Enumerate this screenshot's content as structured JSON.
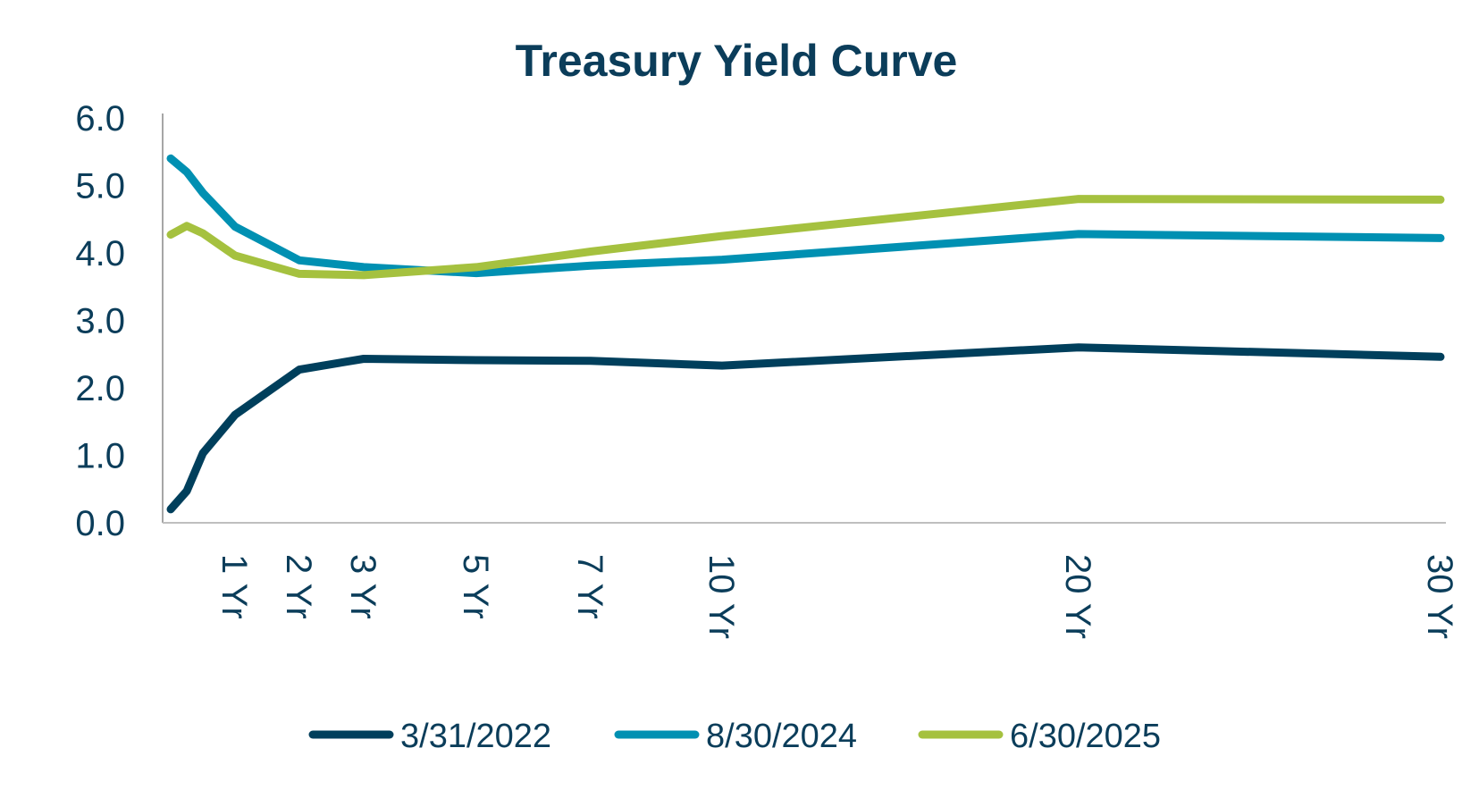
{
  "chart_data": {
    "type": "line",
    "title": "Treasury Yield Curve",
    "xlabel": "",
    "ylabel": "",
    "ylim": [
      0,
      6
    ],
    "yticks": [
      "0.0",
      "1.0",
      "2.0",
      "3.0",
      "4.0",
      "5.0",
      "6.0"
    ],
    "xticks": [
      {
        "x": 1,
        "label": "1 Yr"
      },
      {
        "x": 2,
        "label": "2 Yr"
      },
      {
        "x": 3,
        "label": "3 Yr"
      },
      {
        "x": 5,
        "label": "5 Yr"
      },
      {
        "x": 7,
        "label": "7 Yr"
      },
      {
        "x": 10,
        "label": "10 Yr"
      },
      {
        "x": 20,
        "label": "20 Yr"
      },
      {
        "x": 30,
        "label": "30 Yr"
      }
    ],
    "x": [
      0.083,
      0.25,
      0.5,
      1,
      2,
      3,
      5,
      7,
      10,
      20,
      30
    ],
    "grid": false,
    "legend_position": "bottom",
    "series": [
      {
        "name": "3/31/2022",
        "color": "#003f5c",
        "values": [
          0.2,
          0.47,
          1.03,
          1.6,
          2.27,
          2.43,
          2.41,
          2.4,
          2.33,
          2.6,
          2.46
        ]
      },
      {
        "name": "8/30/2024",
        "color": "#0090b2",
        "values": [
          5.4,
          5.2,
          4.89,
          4.39,
          3.89,
          3.79,
          3.7,
          3.81,
          3.9,
          4.28,
          4.22
        ]
      },
      {
        "name": "6/30/2025",
        "color": "#a5c13f",
        "values": [
          4.27,
          4.4,
          4.29,
          3.96,
          3.69,
          3.67,
          3.79,
          4.02,
          4.25,
          4.8,
          4.79
        ]
      }
    ]
  }
}
